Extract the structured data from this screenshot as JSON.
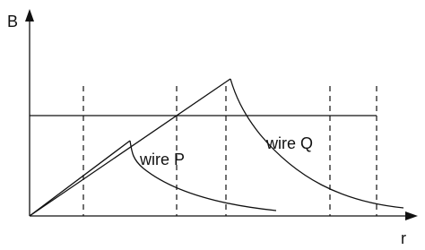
{
  "axes": {
    "y_label": "B",
    "x_label": "r"
  },
  "curves": [
    {
      "label": "wire P"
    },
    {
      "label": "wire Q"
    }
  ]
}
